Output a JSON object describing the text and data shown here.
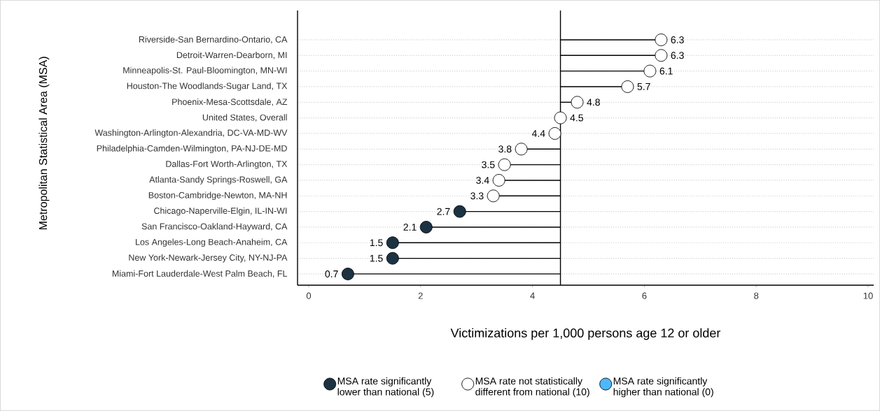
{
  "chart_data": {
    "type": "lollipop",
    "orientation": "horizontal",
    "ylabel": "Metropolitan Statistical Area (MSA)",
    "xlabel": "Victimizations per 1,000 persons age 12 or older",
    "categories": [
      "Riverside-San Bernardino-Ontario, CA",
      "Detroit-Warren-Dearborn, MI",
      "Minneapolis-St. Paul-Bloomington, MN-WI",
      "Houston-The Woodlands-Sugar Land, TX",
      "Phoenix-Mesa-Scottsdale, AZ",
      "United States, Overall",
      "Washington-Arlington-Alexandria, DC-VA-MD-WV",
      "Philadelphia-Camden-Wilmington, PA-NJ-DE-MD",
      "Dallas-Fort Worth-Arlington, TX",
      "Atlanta-Sandy Springs-Roswell, GA",
      "Boston-Cambridge-Newton, MA-NH",
      "Chicago-Naperville-Elgin, IL-IN-WI",
      "San Francisco-Oakland-Hayward, CA",
      "Los Angeles-Long Beach-Anaheim, CA",
      "New York-Newark-Jersey City, NY-NJ-PA",
      "Miami-Fort Lauderdale-West Palm Beach, FL"
    ],
    "series": [
      {
        "name": "MSA rate significantly lower than national (5)",
        "color": "#1b3242",
        "values": [
          null,
          null,
          null,
          null,
          null,
          null,
          null,
          null,
          null,
          null,
          null,
          2.7,
          2.1,
          1.5,
          1.5,
          0.7
        ]
      },
      {
        "name": "MSA rate not statistically different from national (10)",
        "color": "#ffffff",
        "values": [
          6.3,
          6.3,
          6.1,
          5.7,
          4.8,
          4.5,
          4.4,
          3.8,
          3.5,
          3.4,
          3.3,
          null,
          null,
          null,
          null,
          null
        ]
      },
      {
        "name": "MSA rate significantly higher than national (0)",
        "color": "#4db8ff",
        "values": [
          null,
          null,
          null,
          null,
          null,
          null,
          null,
          null,
          null,
          null,
          null,
          null,
          null,
          null,
          null,
          null
        ]
      }
    ],
    "xlim": [
      -0.2,
      10.1
    ],
    "xticks": [
      0,
      2,
      4,
      6,
      8,
      10
    ],
    "ref_lines": [
      {
        "axis": "x",
        "value": 4.5
      }
    ],
    "data_labels": true,
    "grid": "y",
    "legend": "bottom",
    "marker": "circle"
  }
}
